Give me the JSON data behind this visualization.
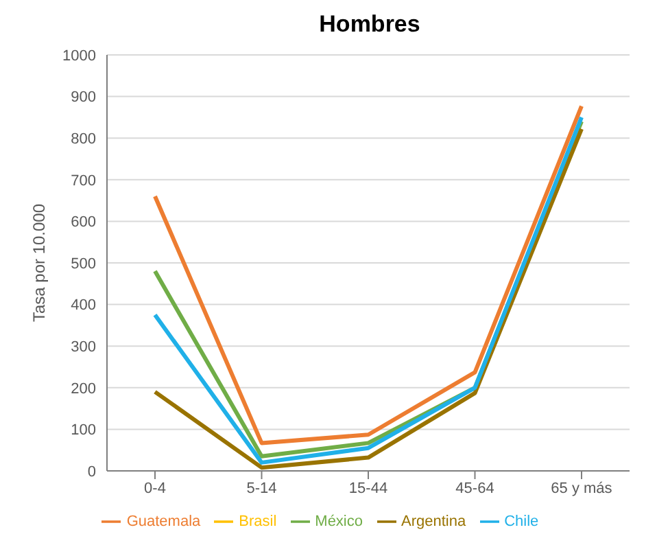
{
  "chart_data": {
    "type": "line",
    "title": "Hombres",
    "ylabel": "Tasa por 10.000",
    "categories": [
      "0-4",
      "5-14",
      "15-44",
      "45-64",
      "65 y más"
    ],
    "series": [
      {
        "name": "Guatemala",
        "color": "#ed7d31",
        "values": [
          660,
          67,
          87,
          237,
          877
        ]
      },
      {
        "name": "Brasil",
        "color": "#ffc000",
        "values": [
          null,
          null,
          null,
          null,
          null
        ]
      },
      {
        "name": "México",
        "color": "#70ad47",
        "values": [
          480,
          35,
          67,
          200,
          840
        ]
      },
      {
        "name": "Argentina",
        "color": "#997300",
        "values": [
          190,
          8,
          32,
          187,
          822
        ]
      },
      {
        "name": "Chile",
        "color": "#20b0e8",
        "values": [
          375,
          20,
          55,
          200,
          850
        ]
      }
    ],
    "ylim": [
      0,
      1000
    ],
    "yticks": [
      0,
      100,
      200,
      300,
      400,
      500,
      600,
      700,
      800,
      900,
      1000
    ],
    "grid": "y",
    "legend": "bottom",
    "marker": "none",
    "line_style": "solid"
  }
}
